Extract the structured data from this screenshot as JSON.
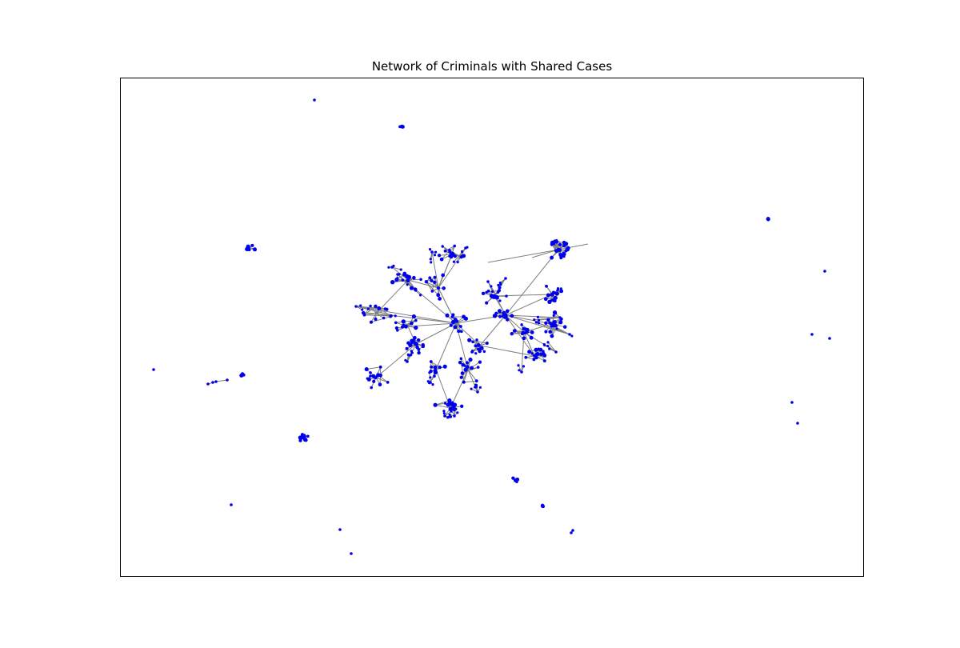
{
  "figure": {
    "title": "Network of Criminals with Shared Cases"
  },
  "graph": {
    "node_color": "#0000ee",
    "edge_color": "#7f7f7f",
    "background": "#ffffff"
  }
}
